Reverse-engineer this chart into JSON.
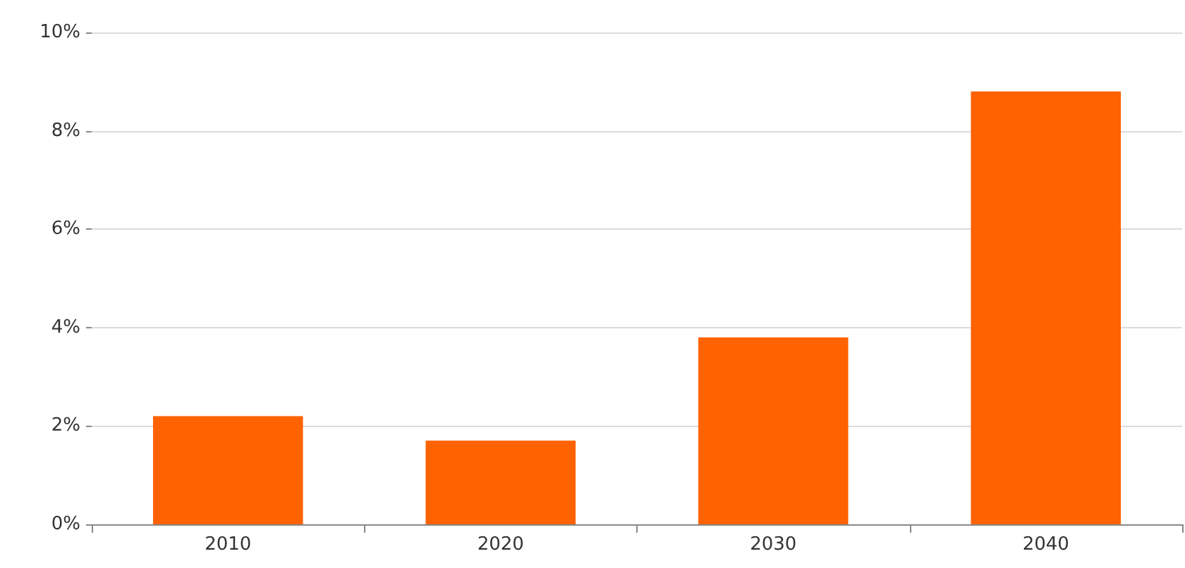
{
  "chart_data": {
    "type": "bar",
    "categories": [
      "2010",
      "2020",
      "2030",
      "2040"
    ],
    "values": [
      2.2,
      1.7,
      3.8,
      8.8
    ],
    "color": "#ff6200",
    "ylim": [
      0,
      10
    ],
    "yticks": [
      {
        "value": 0,
        "label": "0%"
      },
      {
        "value": 2,
        "label": "2%"
      },
      {
        "value": 4,
        "label": "4%"
      },
      {
        "value": 6,
        "label": "6%"
      },
      {
        "value": 8,
        "label": "8%"
      },
      {
        "value": 10,
        "label": "10%"
      }
    ],
    "grid": "y"
  }
}
